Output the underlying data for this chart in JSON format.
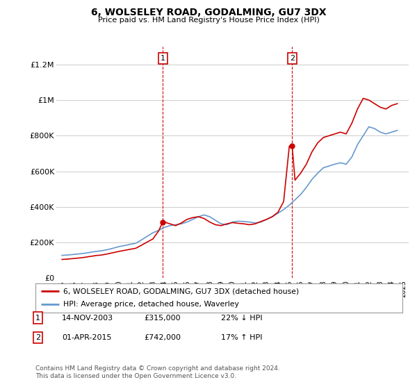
{
  "title": "6, WOLSELEY ROAD, GODALMING, GU7 3DX",
  "subtitle": "Price paid vs. HM Land Registry's House Price Index (HPI)",
  "legend_line1": "6, WOLSELEY ROAD, GODALMING, GU7 3DX (detached house)",
  "legend_line2": "HPI: Average price, detached house, Waverley",
  "footnote": "Contains HM Land Registry data © Crown copyright and database right 2024.\nThis data is licensed under the Open Government Licence v3.0.",
  "annotation1": {
    "label": "1",
    "date": "14-NOV-2003",
    "price": "£315,000",
    "hpi": "22% ↓ HPI"
  },
  "annotation2": {
    "label": "2",
    "date": "01-APR-2015",
    "price": "£742,000",
    "hpi": "17% ↑ HPI"
  },
  "price_color": "#cc0000",
  "hpi_color": "#6699cc",
  "annotation_color": "#cc0000",
  "background_color": "#ffffff",
  "grid_color": "#cccccc",
  "ylim": [
    0,
    1300000
  ],
  "yticks": [
    0,
    200000,
    400000,
    600000,
    800000,
    1000000,
    1200000
  ],
  "ytick_labels": [
    "£0",
    "£200K",
    "£400K",
    "£600K",
    "£800K",
    "£1M",
    "£1.2M"
  ],
  "marker1_year": 2003.87,
  "marker1_price": 315000,
  "marker2_year": 2015.25,
  "marker2_price": 742000,
  "marker1_vline": 2003.87,
  "marker2_vline": 2015.25,
  "hpi_years": [
    1995,
    1995.5,
    1996,
    1996.5,
    1997,
    1997.5,
    1998,
    1998.5,
    1999,
    1999.5,
    2000,
    2000.5,
    2001,
    2001.5,
    2002,
    2002.5,
    2003,
    2003.5,
    2004,
    2004.5,
    2005,
    2005.5,
    2006,
    2006.5,
    2007,
    2007.5,
    2008,
    2008.5,
    2009,
    2009.5,
    2010,
    2010.5,
    2011,
    2011.5,
    2012,
    2012.5,
    2013,
    2013.5,
    2014,
    2014.5,
    2015,
    2015.5,
    2016,
    2016.5,
    2017,
    2017.5,
    2018,
    2018.5,
    2019,
    2019.5,
    2020,
    2020.5,
    2021,
    2021.5,
    2022,
    2022.5,
    2023,
    2023.5,
    2024,
    2024.5
  ],
  "hpi_values": [
    128000,
    130000,
    133000,
    136000,
    140000,
    145000,
    150000,
    154000,
    160000,
    168000,
    177000,
    183000,
    190000,
    196000,
    215000,
    235000,
    255000,
    268000,
    285000,
    295000,
    300000,
    305000,
    315000,
    330000,
    345000,
    355000,
    345000,
    325000,
    305000,
    300000,
    315000,
    320000,
    318000,
    315000,
    310000,
    315000,
    330000,
    345000,
    365000,
    385000,
    410000,
    440000,
    470000,
    510000,
    555000,
    590000,
    620000,
    630000,
    640000,
    648000,
    640000,
    680000,
    750000,
    800000,
    850000,
    840000,
    820000,
    810000,
    820000,
    830000
  ],
  "price_years": [
    1995,
    1995.5,
    1996,
    1996.5,
    1997,
    1997.5,
    1998,
    1998.5,
    1999,
    1999.5,
    2000,
    2000.5,
    2001,
    2001.5,
    2002,
    2002.5,
    2003,
    2003.5,
    2003.87,
    2004,
    2004.5,
    2005,
    2005.5,
    2006,
    2006.5,
    2007,
    2007.5,
    2008,
    2008.5,
    2009,
    2009.5,
    2010,
    2010.5,
    2011,
    2011.5,
    2012,
    2012.5,
    2013,
    2013.5,
    2014,
    2014.5,
    2015,
    2015.25,
    2015.5,
    2016,
    2016.5,
    2017,
    2017.5,
    2018,
    2018.5,
    2019,
    2019.5,
    2020,
    2020.5,
    2021,
    2021.5,
    2022,
    2022.5,
    2023,
    2023.5,
    2024,
    2024.5
  ],
  "price_values": [
    105000,
    107000,
    110000,
    113000,
    117000,
    122000,
    127000,
    130000,
    136000,
    143000,
    150000,
    156000,
    162000,
    168000,
    185000,
    203000,
    220000,
    265000,
    315000,
    315000,
    305000,
    295000,
    310000,
    330000,
    340000,
    345000,
    335000,
    315000,
    300000,
    295000,
    305000,
    312000,
    308000,
    305000,
    300000,
    305000,
    318000,
    330000,
    345000,
    370000,
    430000,
    742000,
    742000,
    550000,
    590000,
    640000,
    710000,
    760000,
    790000,
    800000,
    810000,
    820000,
    810000,
    870000,
    950000,
    1010000,
    1000000,
    980000,
    960000,
    950000,
    970000,
    980000
  ]
}
